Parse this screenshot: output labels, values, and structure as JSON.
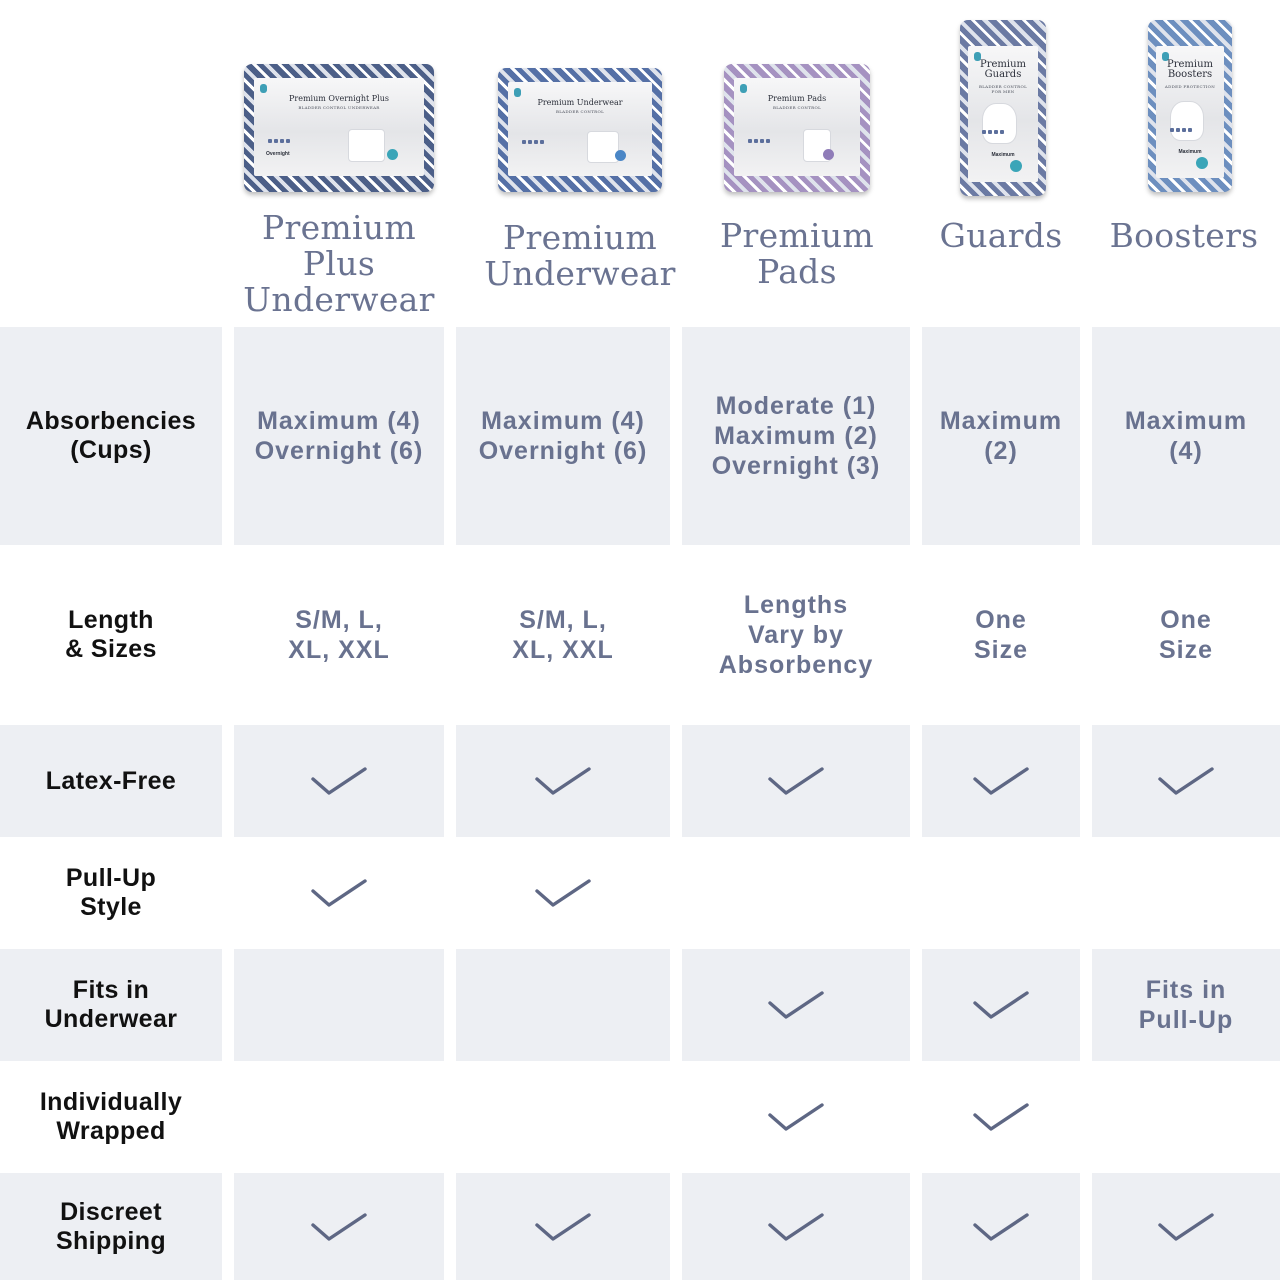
{
  "colors": {
    "text_primary": "#111111",
    "text_accent": "#69728f",
    "check": "#5e6784",
    "row_shade": "#edeff3",
    "background": "#ffffff"
  },
  "products": [
    {
      "name": "Premium\nPlus\nUnderwear",
      "package": {
        "brand_text": "Premium Overnight Plus",
        "sub_text": "BLADDER CONTROL UNDERWEAR",
        "level_text": "Overnight",
        "pattern_color": "#4c5f88",
        "accent_color": "#3aa5b8"
      }
    },
    {
      "name": "Premium\nUnderwear",
      "package": {
        "brand_text": "Premium Underwear",
        "sub_text": "BLADDER CONTROL",
        "level_text": "",
        "pattern_color": "#5570a6",
        "accent_color": "#4a86c6"
      }
    },
    {
      "name": "Premium\nPads",
      "package": {
        "brand_text": "Premium Pads",
        "sub_text": "BLADDER CONTROL",
        "level_text": "",
        "pattern_color": "#a592c1",
        "accent_color": "#8f7cb8"
      }
    },
    {
      "name": "Guards",
      "package": {
        "brand_text": "Premium\nGuards",
        "sub_text": "BLADDER CONTROL\nFOR MEN",
        "level_text": "Maximum",
        "pattern_color": "#6b7aa3",
        "accent_color": "#3aa5b8"
      }
    },
    {
      "name": "Boosters",
      "package": {
        "brand_text": "Premium\nBoosters",
        "sub_text": "ADDED PROTECTION",
        "level_text": "Maximum",
        "pattern_color": "#6d8fbf",
        "accent_color": "#3aa5b8"
      }
    }
  ],
  "rows": [
    {
      "label": "Absorbencies\n(Cups)",
      "cells": [
        {
          "type": "text",
          "text": "Maximum (4)\nOvernight (6)"
        },
        {
          "type": "text",
          "text": "Maximum (4)\nOvernight (6)"
        },
        {
          "type": "text",
          "text": "Moderate (1)\nMaximum (2)\nOvernight (3)"
        },
        {
          "type": "text",
          "text": "Maximum\n(2)"
        },
        {
          "type": "text",
          "text": "Maximum\n(4)"
        }
      ]
    },
    {
      "label": "Length\n& Sizes",
      "cells": [
        {
          "type": "text",
          "text": "S/M, L,\nXL, XXL"
        },
        {
          "type": "text",
          "text": "S/M, L,\nXL, XXL"
        },
        {
          "type": "text",
          "text": "Lengths\nVary by\nAbsorbency"
        },
        {
          "type": "text",
          "text": "One\nSize"
        },
        {
          "type": "text",
          "text": "One\nSize"
        }
      ]
    },
    {
      "label": "Latex-Free",
      "cells": [
        {
          "type": "check"
        },
        {
          "type": "check"
        },
        {
          "type": "check"
        },
        {
          "type": "check"
        },
        {
          "type": "check"
        }
      ]
    },
    {
      "label": "Pull-Up\nStyle",
      "cells": [
        {
          "type": "check"
        },
        {
          "type": "check"
        },
        {
          "type": "empty"
        },
        {
          "type": "empty"
        },
        {
          "type": "empty"
        }
      ]
    },
    {
      "label": "Fits in\nUnderwear",
      "cells": [
        {
          "type": "empty"
        },
        {
          "type": "empty"
        },
        {
          "type": "check"
        },
        {
          "type": "check"
        },
        {
          "type": "text",
          "text": "Fits in\nPull-Up"
        }
      ]
    },
    {
      "label": "Individually\nWrapped",
      "cells": [
        {
          "type": "empty"
        },
        {
          "type": "empty"
        },
        {
          "type": "check"
        },
        {
          "type": "check"
        },
        {
          "type": "empty"
        }
      ]
    },
    {
      "label": "Discreet\nShipping",
      "cells": [
        {
          "type": "check"
        },
        {
          "type": "check"
        },
        {
          "type": "check"
        },
        {
          "type": "check"
        },
        {
          "type": "check"
        }
      ]
    }
  ]
}
